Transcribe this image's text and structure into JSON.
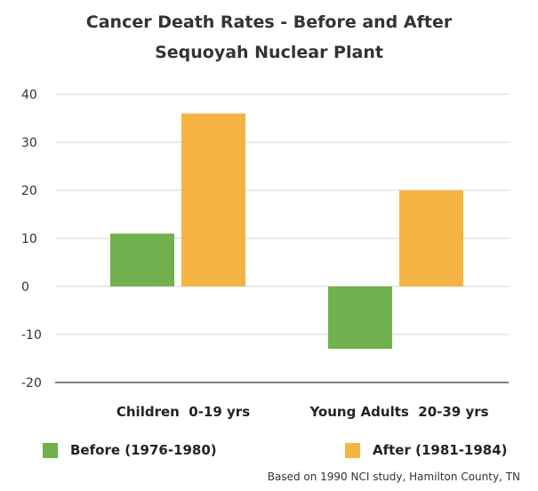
{
  "chart_data": {
    "type": "bar",
    "title": "Cancer Death Rates - Before and After",
    "subtitle": "Sequoyah Nuclear Plant",
    "categories": [
      "Children  0-19 yrs",
      "Young Adults  20-39 yrs"
    ],
    "series": [
      {
        "name": "Before (1976-1980)",
        "values": [
          11,
          -13
        ],
        "color": "#70b04f"
      },
      {
        "name": "After (1981-1984)",
        "values": [
          36,
          20
        ],
        "color": "#f5b441"
      }
    ],
    "ylim": [
      -20,
      40
    ],
    "yticks": [
      40,
      30,
      20,
      10,
      0,
      -10,
      -20
    ],
    "grid": true,
    "legend_position": "bottom",
    "xlabel": "",
    "ylabel": ""
  },
  "source_note": "Based on 1990 NCI study, Hamilton County, TN"
}
